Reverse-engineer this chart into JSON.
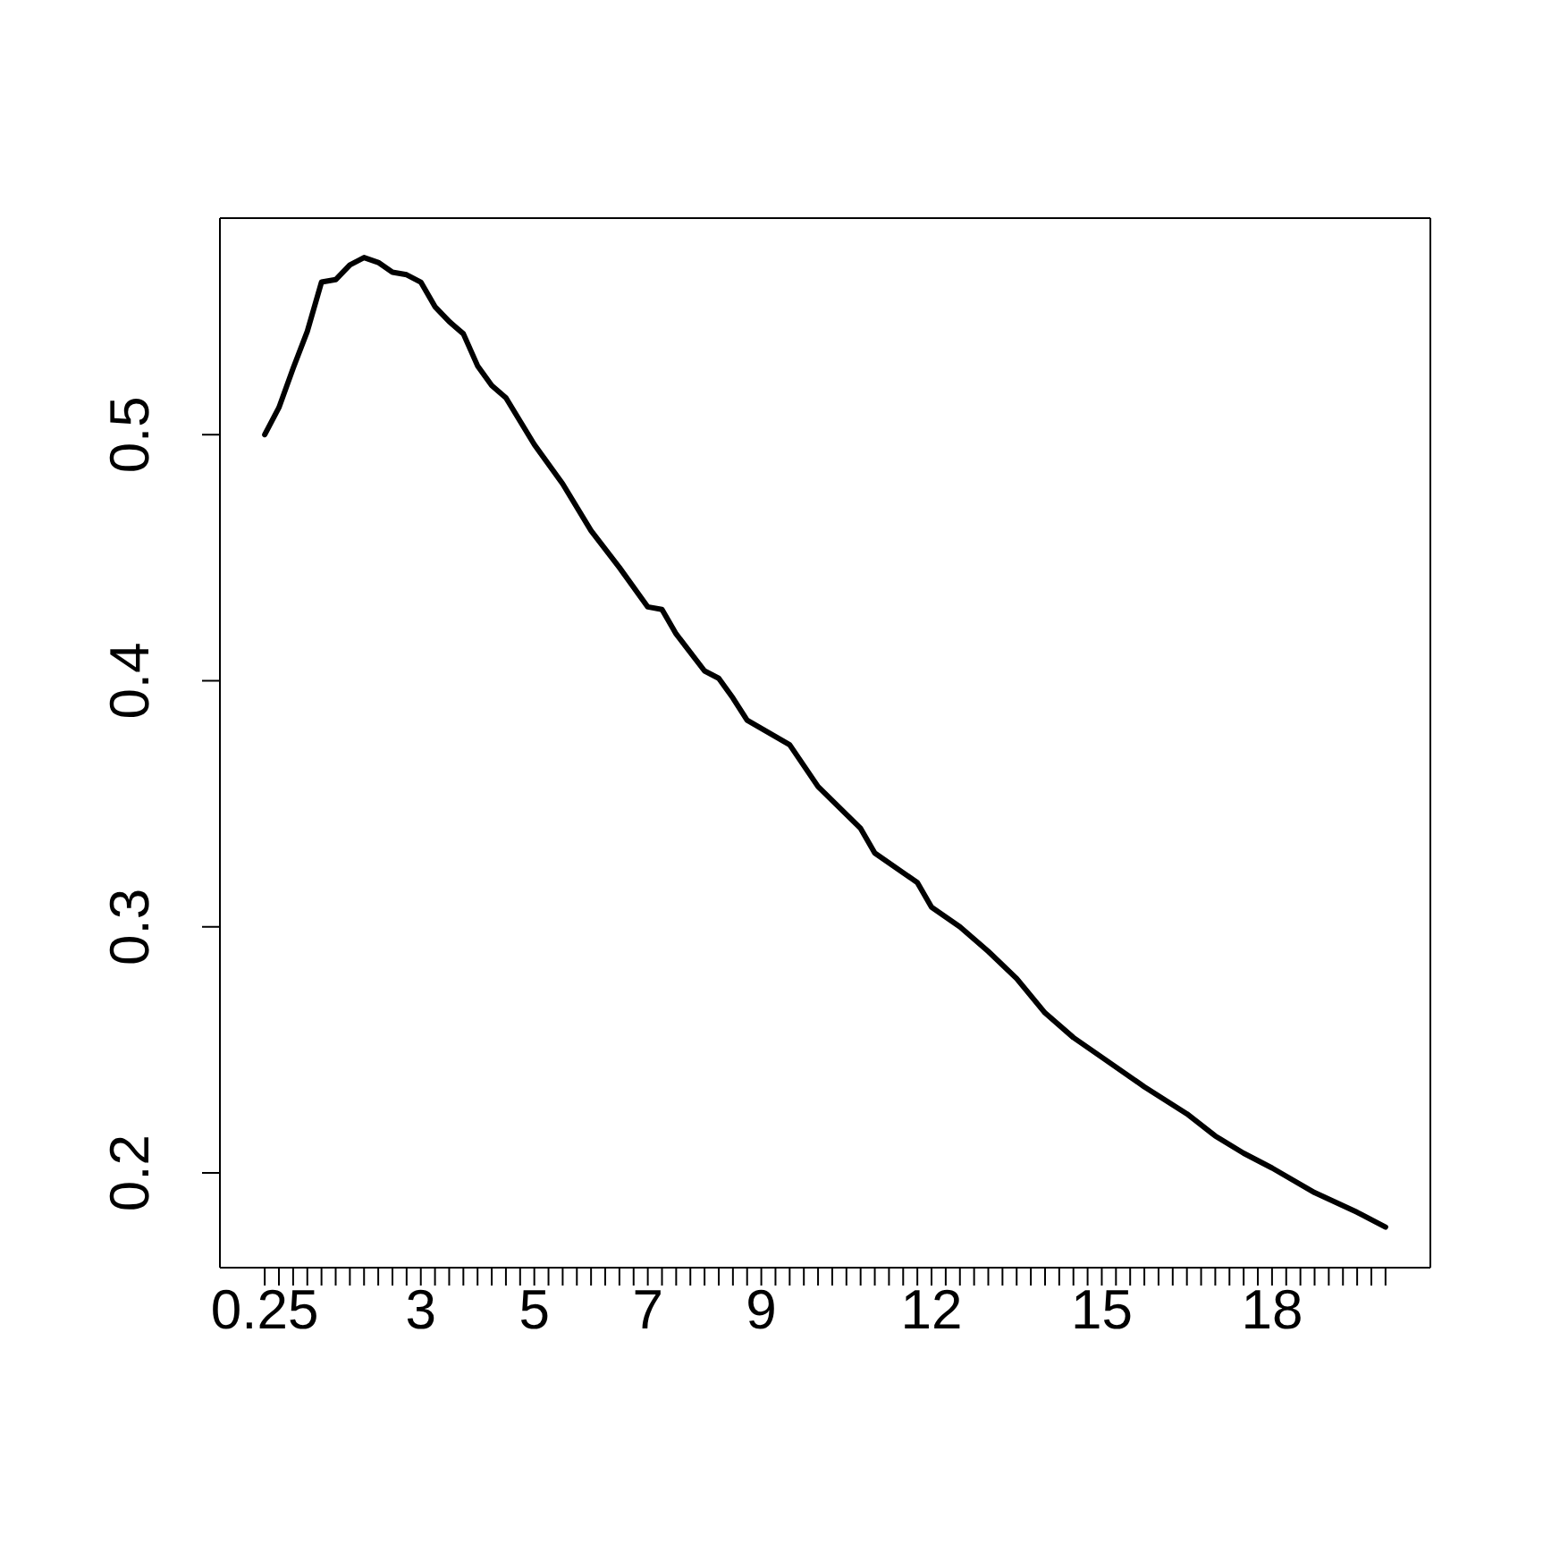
{
  "chart_data": {
    "type": "line",
    "color": "#000000",
    "line_style": "solid",
    "x": [
      0.25,
      0.5,
      0.75,
      1.0,
      1.25,
      1.5,
      1.75,
      2.0,
      2.25,
      2.5,
      2.75,
      3.0,
      3.25,
      3.5,
      3.75,
      4.0,
      4.25,
      4.5,
      5.0,
      5.5,
      6.0,
      6.5,
      7.0,
      7.25,
      7.5,
      8.0,
      8.25,
      8.5,
      8.75,
      9.5,
      10.0,
      10.75,
      11.0,
      11.75,
      12.0,
      12.5,
      13.0,
      13.5,
      14.0,
      14.5,
      15.0,
      15.75,
      16.5,
      17.0,
      17.5,
      18.0,
      18.75,
      19.5,
      20.0
    ],
    "values": [
      0.5,
      0.511,
      0.527,
      0.542,
      0.562,
      0.563,
      0.569,
      0.572,
      0.57,
      0.566,
      0.565,
      0.562,
      0.552,
      0.546,
      0.541,
      0.528,
      0.52,
      0.515,
      0.496,
      0.48,
      0.461,
      0.446,
      0.43,
      0.429,
      0.419,
      0.404,
      0.401,
      0.393,
      0.384,
      0.374,
      0.357,
      0.34,
      0.33,
      0.318,
      0.308,
      0.3,
      0.29,
      0.279,
      0.265,
      0.255,
      0.247,
      0.235,
      0.224,
      0.215,
      0.208,
      0.202,
      0.192,
      0.184,
      0.178
    ],
    "xlim": [
      -0.54,
      20.79
    ],
    "ylim": [
      0.1615,
      0.588
    ],
    "yticks": [
      0.2,
      0.3,
      0.4,
      0.5
    ],
    "xticks": [
      0.25,
      {
        "value": 0.5,
        "label": null
      },
      {
        "value": 0.75,
        "label": null
      },
      {
        "value": 1,
        "label": null
      },
      {
        "value": 1.25,
        "label": null
      },
      {
        "value": 1.5,
        "label": null
      },
      {
        "value": 1.75,
        "label": null
      },
      {
        "value": 2,
        "label": null
      },
      {
        "value": 2.25,
        "label": null
      },
      {
        "value": 2.5,
        "label": null
      },
      {
        "value": 2.75,
        "label": null
      },
      3,
      {
        "value": 3.25,
        "label": null
      },
      {
        "value": 3.5,
        "label": null
      },
      {
        "value": 3.75,
        "label": null
      },
      {
        "value": 4,
        "label": null
      },
      {
        "value": 4.25,
        "label": null
      },
      {
        "value": 4.5,
        "label": null
      },
      {
        "value": 4.75,
        "label": null
      },
      5,
      {
        "value": 5.25,
        "label": null
      },
      {
        "value": 5.5,
        "label": null
      },
      {
        "value": 5.75,
        "label": null
      },
      {
        "value": 6,
        "label": null
      },
      {
        "value": 6.25,
        "label": null
      },
      {
        "value": 6.5,
        "label": null
      },
      {
        "value": 6.75,
        "label": null
      },
      7,
      {
        "value": 7.25,
        "label": null
      },
      {
        "value": 7.5,
        "label": null
      },
      {
        "value": 7.75,
        "label": null
      },
      {
        "value": 8,
        "label": null
      },
      {
        "value": 8.25,
        "label": null
      },
      {
        "value": 8.5,
        "label": null
      },
      {
        "value": 8.75,
        "label": null
      },
      9,
      {
        "value": 9.25,
        "label": null
      },
      {
        "value": 9.5,
        "label": null
      },
      {
        "value": 9.75,
        "label": null
      },
      {
        "value": 10,
        "label": null
      },
      {
        "value": 10.25,
        "label": null
      },
      {
        "value": 10.5,
        "label": null
      },
      {
        "value": 10.75,
        "label": null
      },
      {
        "value": 11,
        "label": null
      },
      {
        "value": 11.25,
        "label": null
      },
      {
        "value": 11.5,
        "label": null
      },
      {
        "value": 11.75,
        "label": null
      },
      12,
      {
        "value": 12.25,
        "label": null
      },
      {
        "value": 12.5,
        "label": null
      },
      {
        "value": 12.75,
        "label": null
      },
      {
        "value": 13,
        "label": null
      },
      {
        "value": 13.25,
        "label": null
      },
      {
        "value": 13.5,
        "label": null
      },
      {
        "value": 13.75,
        "label": null
      },
      {
        "value": 14,
        "label": null
      },
      {
        "value": 14.25,
        "label": null
      },
      {
        "value": 14.5,
        "label": null
      },
      {
        "value": 14.75,
        "label": null
      },
      15,
      {
        "value": 15.25,
        "label": null
      },
      {
        "value": 15.5,
        "label": null
      },
      {
        "value": 15.75,
        "label": null
      },
      {
        "value": 16,
        "label": null
      },
      {
        "value": 16.25,
        "label": null
      },
      {
        "value": 16.5,
        "label": null
      },
      {
        "value": 16.75,
        "label": null
      },
      {
        "value": 17,
        "label": null
      },
      {
        "value": 17.25,
        "label": null
      },
      {
        "value": 17.5,
        "label": null
      },
      {
        "value": 17.75,
        "label": null
      },
      18,
      {
        "value": 18.25,
        "label": null
      },
      {
        "value": 18.5,
        "label": null
      },
      {
        "value": 18.75,
        "label": null
      },
      {
        "value": 19,
        "label": null
      },
      {
        "value": 19.25,
        "label": null
      },
      {
        "value": 19.5,
        "label": null
      },
      {
        "value": 19.75,
        "label": null
      },
      {
        "value": 20,
        "label": null
      }
    ]
  }
}
